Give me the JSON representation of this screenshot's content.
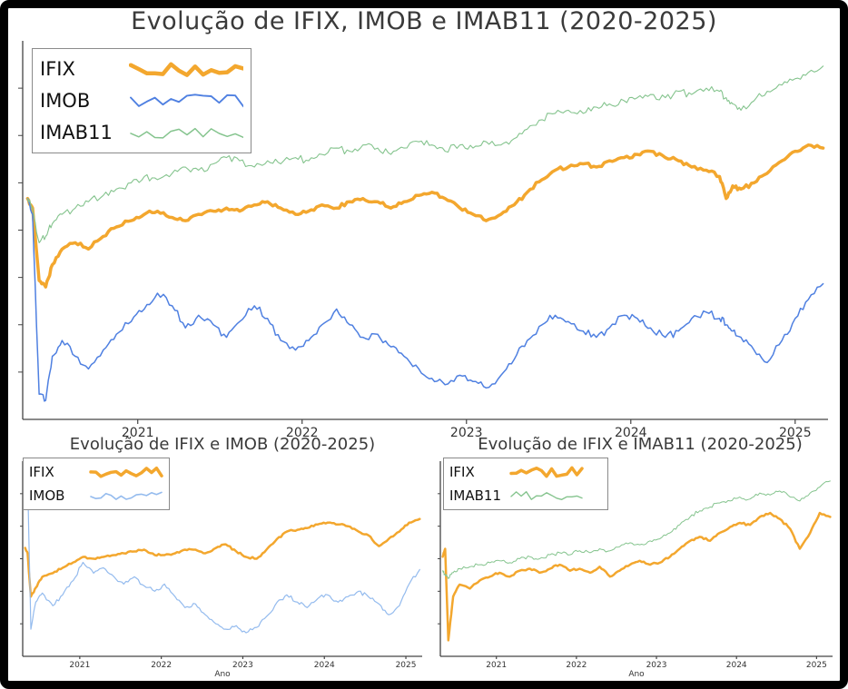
{
  "page": {
    "background": "#ffffff",
    "frame_border_color": "#000000",
    "title_color": "#3a3a3a",
    "axis_color": "#444444",
    "tick_label_color": "#333333"
  },
  "chart_data": [
    {
      "id": "main",
      "type": "line",
      "title": "Evolução de IFIX, IMOB e IMAB11 (2020-2025)",
      "xlabel": "",
      "ylabel": "",
      "x_ticks": [
        2021,
        2022,
        2023,
        2024,
        2025
      ],
      "x_range": [
        2020.3,
        2025.2
      ],
      "y_range": [
        30,
        150
      ],
      "grid": false,
      "legend_position": "upper left",
      "series": [
        {
          "name": "IFIX",
          "color": "#F3A72E",
          "width": 3.5,
          "x": [
            2020.33,
            2020.36,
            2020.4,
            2020.44,
            2020.48,
            2020.54,
            2020.62,
            2020.7,
            2020.79,
            2020.87,
            2020.96,
            2021.04,
            2021.12,
            2021.21,
            2021.29,
            2021.37,
            2021.46,
            2021.54,
            2021.62,
            2021.71,
            2021.79,
            2021.87,
            2021.96,
            2022.04,
            2022.12,
            2022.21,
            2022.29,
            2022.37,
            2022.46,
            2022.54,
            2022.62,
            2022.71,
            2022.79,
            2022.87,
            2022.96,
            2023.04,
            2023.12,
            2023.21,
            2023.29,
            2023.37,
            2023.46,
            2023.54,
            2023.62,
            2023.71,
            2023.79,
            2023.87,
            2023.96,
            2024.04,
            2024.12,
            2024.21,
            2024.29,
            2024.37,
            2024.46,
            2024.54,
            2024.58,
            2024.62,
            2024.67,
            2024.75,
            2024.83,
            2024.92,
            2025.0,
            2025.08,
            2025.17
          ],
          "y": [
            100,
            97,
            74,
            72,
            79,
            84,
            86,
            84,
            88,
            91,
            93,
            95,
            96,
            94,
            93,
            95,
            96,
            97,
            96,
            98,
            99,
            97,
            95,
            96,
            98,
            97,
            99,
            100,
            99,
            97,
            99,
            101,
            102,
            100,
            97,
            95,
            93,
            95,
            98,
            102,
            106,
            109,
            110,
            111,
            110,
            112,
            113,
            114,
            115,
            113,
            112,
            110,
            109,
            107,
            100,
            104,
            103,
            105,
            108,
            112,
            115,
            117,
            116
          ]
        },
        {
          "name": "IMOB",
          "color": "#4F80E1",
          "width": 1.5,
          "x": [
            2020.33,
            2020.36,
            2020.4,
            2020.44,
            2020.48,
            2020.54,
            2020.62,
            2020.7,
            2020.79,
            2020.87,
            2020.96,
            2021.04,
            2021.12,
            2021.21,
            2021.29,
            2021.37,
            2021.46,
            2021.54,
            2021.62,
            2021.71,
            2021.79,
            2021.87,
            2021.96,
            2022.04,
            2022.12,
            2022.21,
            2022.29,
            2022.37,
            2022.46,
            2022.54,
            2022.62,
            2022.71,
            2022.79,
            2022.87,
            2022.96,
            2023.04,
            2023.12,
            2023.21,
            2023.29,
            2023.37,
            2023.46,
            2023.54,
            2023.62,
            2023.71,
            2023.79,
            2023.87,
            2023.96,
            2024.04,
            2024.12,
            2024.21,
            2024.29,
            2024.37,
            2024.46,
            2024.54,
            2024.58,
            2024.62,
            2024.67,
            2024.75,
            2024.83,
            2024.92,
            2025.0,
            2025.08,
            2025.17
          ],
          "y": [
            100,
            95,
            38,
            36,
            50,
            55,
            50,
            46,
            52,
            57,
            61,
            65,
            70,
            66,
            59,
            63,
            60,
            56,
            61,
            66,
            62,
            55,
            52,
            55,
            60,
            65,
            60,
            56,
            57,
            53,
            50,
            46,
            43,
            41,
            44,
            42,
            40,
            44,
            49,
            55,
            60,
            63,
            61,
            58,
            56,
            59,
            63,
            62,
            59,
            56,
            58,
            62,
            64,
            62,
            60,
            58,
            56,
            52,
            48,
            55,
            62,
            68,
            73
          ]
        },
        {
          "name": "IMAB11",
          "color": "#85C48E",
          "width": 1.1,
          "x": [
            2020.33,
            2020.36,
            2020.4,
            2020.44,
            2020.48,
            2020.54,
            2020.62,
            2020.7,
            2020.79,
            2020.87,
            2020.96,
            2021.04,
            2021.12,
            2021.21,
            2021.29,
            2021.37,
            2021.46,
            2021.54,
            2021.62,
            2021.71,
            2021.79,
            2021.87,
            2021.96,
            2022.04,
            2022.12,
            2022.21,
            2022.29,
            2022.37,
            2022.46,
            2022.54,
            2022.62,
            2022.71,
            2022.79,
            2022.87,
            2022.96,
            2023.04,
            2023.12,
            2023.21,
            2023.29,
            2023.37,
            2023.46,
            2023.54,
            2023.62,
            2023.71,
            2023.79,
            2023.87,
            2023.96,
            2024.04,
            2024.12,
            2024.21,
            2024.29,
            2024.37,
            2024.46,
            2024.54,
            2024.58,
            2024.62,
            2024.67,
            2024.75,
            2024.83,
            2024.92,
            2025.0,
            2025.08,
            2025.17
          ],
          "y": [
            100,
            97,
            86,
            88,
            92,
            95,
            97,
            99,
            101,
            103,
            105,
            107,
            106,
            108,
            110,
            109,
            111,
            113,
            112,
            110,
            112,
            111,
            113,
            112,
            114,
            116,
            115,
            117,
            116,
            114,
            116,
            118,
            117,
            115,
            117,
            116,
            118,
            117,
            119,
            122,
            125,
            127,
            128,
            127,
            129,
            130,
            131,
            132,
            133,
            132,
            134,
            133,
            135,
            134,
            132,
            130,
            128,
            131,
            134,
            136,
            138,
            140,
            142
          ]
        }
      ]
    },
    {
      "id": "ifix-imob",
      "type": "line",
      "title": "Evolução de IFIX e IMOB (2020-2025)",
      "xlabel": "Ano",
      "ylabel": "",
      "x_ticks": [
        2021,
        2022,
        2023,
        2024,
        2025
      ],
      "x_range": [
        2020.3,
        2025.2
      ],
      "y_range": [
        40,
        148
      ],
      "grid": false,
      "legend_position": "upper left",
      "series": [
        {
          "name": "IFIX",
          "color": "#F3A72E",
          "width": 2.5,
          "x": [
            2020.33,
            2020.36,
            2020.4,
            2020.46,
            2020.54,
            2020.67,
            2020.79,
            2020.92,
            2021.04,
            2021.17,
            2021.29,
            2021.42,
            2021.54,
            2021.67,
            2021.79,
            2021.92,
            2022.04,
            2022.17,
            2022.29,
            2022.42,
            2022.54,
            2022.67,
            2022.79,
            2022.92,
            2023.04,
            2023.17,
            2023.29,
            2023.42,
            2023.54,
            2023.67,
            2023.79,
            2023.92,
            2024.04,
            2024.17,
            2024.29,
            2024.42,
            2024.54,
            2024.67,
            2024.79,
            2024.92,
            2025.04,
            2025.17
          ],
          "y": [
            100,
            97,
            73,
            78,
            84,
            86,
            89,
            92,
            95,
            94,
            95,
            96,
            97,
            98,
            99,
            96,
            96,
            97,
            99,
            99,
            97,
            100,
            102,
            98,
            95,
            94,
            99,
            105,
            109,
            110,
            111,
            113,
            114,
            113,
            112,
            109,
            107,
            101,
            105,
            109,
            114,
            116
          ]
        },
        {
          "name": "IMOB",
          "color": "#94BBEE",
          "width": 1.2,
          "x": [
            2020.33,
            2020.36,
            2020.4,
            2020.46,
            2020.54,
            2020.67,
            2020.79,
            2020.92,
            2021.04,
            2021.17,
            2021.29,
            2021.42,
            2021.54,
            2021.67,
            2021.79,
            2021.92,
            2022.04,
            2022.17,
            2022.29,
            2022.42,
            2022.54,
            2022.67,
            2022.79,
            2022.92,
            2023.04,
            2023.17,
            2023.29,
            2023.42,
            2023.54,
            2023.67,
            2023.79,
            2023.92,
            2024.04,
            2024.17,
            2024.29,
            2024.42,
            2024.54,
            2024.67,
            2024.79,
            2024.92,
            2025.04,
            2025.17
          ],
          "y": [
            128,
            140,
            55,
            70,
            75,
            68,
            74,
            82,
            92,
            86,
            89,
            84,
            80,
            84,
            79,
            76,
            80,
            73,
            67,
            69,
            63,
            58,
            55,
            57,
            53,
            56,
            62,
            70,
            74,
            70,
            67,
            72,
            74,
            70,
            73,
            76,
            73,
            69,
            63,
            68,
            80,
            88
          ]
        }
      ]
    },
    {
      "id": "ifix-imab11",
      "type": "line",
      "title": "Evolução de IFIX e IMAB11 (2020-2025)",
      "xlabel": "Ano",
      "ylabel": "",
      "x_ticks": [
        2021,
        2022,
        2023,
        2024,
        2025
      ],
      "x_range": [
        2020.3,
        2025.2
      ],
      "y_range": [
        50,
        148
      ],
      "grid": false,
      "legend_position": "upper left",
      "series": [
        {
          "name": "IFIX",
          "color": "#F3A72E",
          "width": 2.5,
          "x": [
            2020.33,
            2020.36,
            2020.4,
            2020.46,
            2020.54,
            2020.67,
            2020.79,
            2020.92,
            2021.04,
            2021.17,
            2021.29,
            2021.42,
            2021.54,
            2021.67,
            2021.79,
            2021.92,
            2022.04,
            2022.17,
            2022.29,
            2022.42,
            2022.54,
            2022.67,
            2022.79,
            2022.92,
            2023.04,
            2023.17,
            2023.29,
            2023.42,
            2023.54,
            2023.67,
            2023.79,
            2023.92,
            2024.04,
            2024.17,
            2024.29,
            2024.42,
            2024.54,
            2024.67,
            2024.79,
            2024.92,
            2025.04,
            2025.17
          ],
          "y": [
            100,
            104,
            58,
            80,
            86,
            84,
            88,
            90,
            92,
            90,
            93,
            94,
            92,
            94,
            96,
            93,
            94,
            92,
            95,
            90,
            93,
            96,
            98,
            96,
            97,
            100,
            104,
            108,
            110,
            108,
            112,
            115,
            117,
            116,
            120,
            122,
            119,
            114,
            104,
            112,
            122,
            120
          ]
        },
        {
          "name": "IMAB11",
          "color": "#85C48E",
          "width": 1.0,
          "x": [
            2020.33,
            2020.36,
            2020.4,
            2020.46,
            2020.54,
            2020.67,
            2020.79,
            2020.92,
            2021.04,
            2021.17,
            2021.29,
            2021.42,
            2021.54,
            2021.67,
            2021.79,
            2021.92,
            2022.04,
            2022.17,
            2022.29,
            2022.42,
            2022.54,
            2022.67,
            2022.79,
            2022.92,
            2023.04,
            2023.17,
            2023.29,
            2023.42,
            2023.54,
            2023.67,
            2023.79,
            2023.92,
            2024.04,
            2024.17,
            2024.29,
            2024.42,
            2024.54,
            2024.67,
            2024.79,
            2024.92,
            2025.04,
            2025.17
          ],
          "y": [
            93,
            91,
            89,
            92,
            94,
            95,
            96,
            97,
            98,
            97,
            99,
            100,
            99,
            101,
            102,
            101,
            103,
            102,
            104,
            103,
            105,
            107,
            106,
            108,
            109,
            112,
            116,
            120,
            123,
            125,
            127,
            128,
            130,
            129,
            132,
            131,
            133,
            130,
            128,
            132,
            135,
            138
          ]
        }
      ]
    }
  ]
}
